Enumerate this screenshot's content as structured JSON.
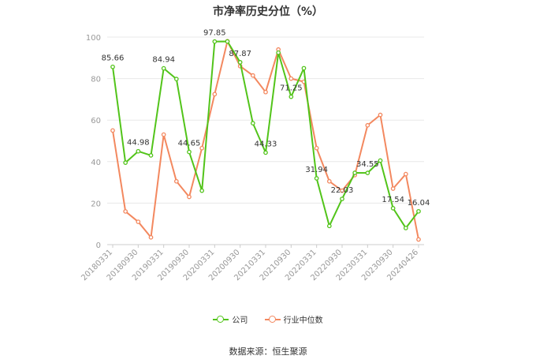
{
  "colors": {
    "company": "#52c41a",
    "industry": "#f3885f",
    "grid": "#e8e8e8",
    "axis": "#cccccc",
    "tick_text": "#999999"
  },
  "chart_data": {
    "type": "line",
    "title": "市净率历史分位（%）",
    "ylim": [
      0,
      100
    ],
    "yticks": [
      0,
      20,
      40,
      60,
      80,
      100
    ],
    "x_tick_labels": [
      "20180331",
      "20180930",
      "20190331",
      "20190930",
      "20200331",
      "20200930",
      "20210331",
      "20210930",
      "20220331",
      "20220930",
      "20230331",
      "20230930",
      "20240426"
    ],
    "grid": true,
    "legend_position": "bottom",
    "series": [
      {
        "name": "公司",
        "values": [
          85.66,
          39.5,
          44.98,
          43.0,
          84.94,
          79.8,
          44.65,
          26.0,
          97.85,
          97.9,
          87.87,
          58.5,
          44.33,
          92.5,
          71.25,
          85.0,
          31.94,
          9.0,
          22.03,
          34.6,
          34.55,
          40.5,
          17.54,
          8.0,
          16.04
        ],
        "labels": [
          "85.66",
          "",
          "44.98",
          "",
          "84.94",
          "",
          "44.65",
          "",
          "97.85",
          "",
          "87.87",
          "",
          "44.33",
          "",
          "71.25",
          "",
          "31.94",
          "",
          "22.03",
          "",
          "34.55",
          "",
          "17.54",
          "",
          "16.04"
        ]
      },
      {
        "name": "行业中位数",
        "values": [
          55.0,
          16.0,
          11.0,
          3.5,
          53.0,
          30.5,
          23.0,
          46.5,
          72.5,
          98.0,
          86.0,
          81.5,
          73.5,
          94.0,
          80.0,
          78.5,
          46.5,
          30.5,
          26.0,
          33.5,
          57.5,
          62.5,
          27.0,
          34.0,
          2.5
        ]
      }
    ]
  },
  "legend": {
    "company": "公司",
    "industry": "行业中位数"
  },
  "source": "数据来源：恒生聚源"
}
